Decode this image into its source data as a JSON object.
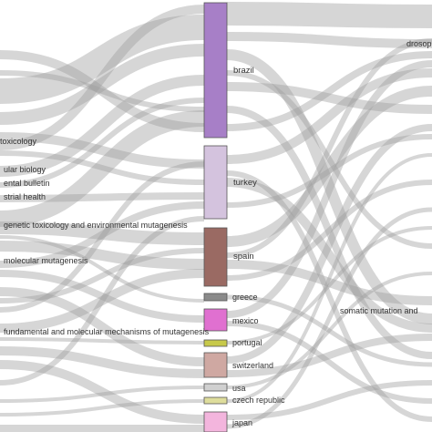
{
  "left_labels": [
    {
      "id": "toxicology",
      "text": "toxicology"
    },
    {
      "id": "molecular-biology",
      "text": "ular biology"
    },
    {
      "id": "mental-bulletin",
      "text": "ental bulletin"
    },
    {
      "id": "industrial-health",
      "text": "strial health"
    },
    {
      "id": "genetic-toxicology",
      "text": "genetic toxicology and environmental mutagenesis"
    },
    {
      "id": "molecular-mutagenesis",
      "text": "molecular mutagenesis"
    },
    {
      "id": "fundamental-mechanisms",
      "text": "fundamental and molecular mechanisms of mutagenesis"
    }
  ],
  "countries": [
    {
      "id": "brazil",
      "text": "brazil",
      "color": "#a77fc7"
    },
    {
      "id": "turkey",
      "text": "turkey",
      "color": "#d4c3de"
    },
    {
      "id": "spain",
      "text": "spain",
      "color": "#9a6a63"
    },
    {
      "id": "greece",
      "text": "greece",
      "color": "#8a8a8a"
    },
    {
      "id": "mexico",
      "text": "mexico",
      "color": "#e070d0"
    },
    {
      "id": "portugal",
      "text": "portugal",
      "color": "#c7c94a"
    },
    {
      "id": "switzerland",
      "text": "switzerland",
      "color": "#cfa8a2"
    },
    {
      "id": "usa",
      "text": "usa",
      "color": "#d0d0d0"
    },
    {
      "id": "czech-republic",
      "text": "czech republic",
      "color": "#dedd9c"
    },
    {
      "id": "japan",
      "text": "japan",
      "color": "#f3b5dd"
    }
  ],
  "right_labels": [
    {
      "id": "drosophila",
      "text": "drosop"
    },
    {
      "id": "somatic-mutation",
      "text": "somatic mutation and"
    }
  ],
  "flow_color": "#9e9e9e"
}
